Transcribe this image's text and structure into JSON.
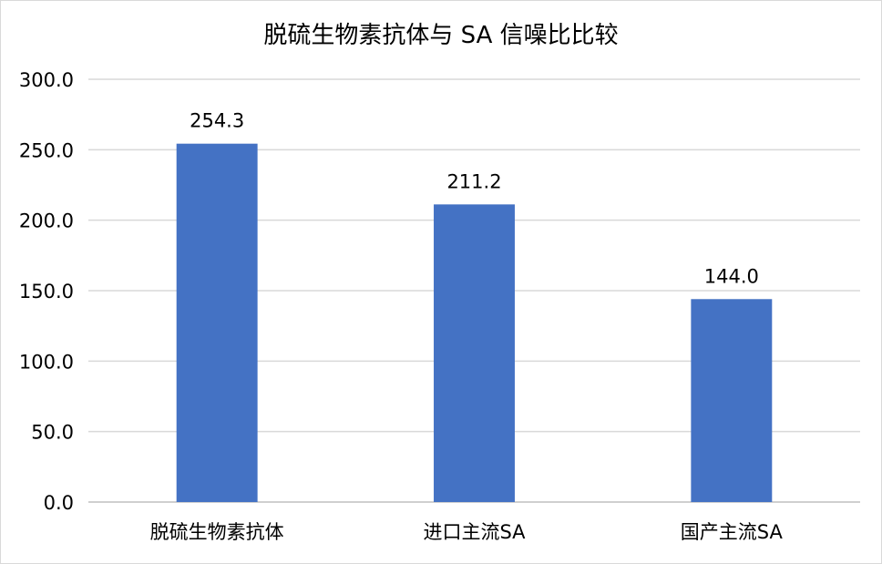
{
  "chart_data": {
    "type": "bar",
    "title": "脱硫生物素抗体与 SA 信噪比比较",
    "categories": [
      "脱硫生物素抗体",
      "进口主流SA",
      "国产主流SA"
    ],
    "values": [
      254.3,
      211.2,
      144.0
    ],
    "data_labels": [
      "254.3",
      "211.2",
      "144.0"
    ],
    "yticks": [
      "0.0",
      "50.0",
      "100.0",
      "150.0",
      "200.0",
      "250.0",
      "300.0"
    ],
    "ylim": [
      0,
      300
    ],
    "ytick_step": 50,
    "grid": true,
    "legend": "none",
    "bar_color": "#4472C4"
  }
}
